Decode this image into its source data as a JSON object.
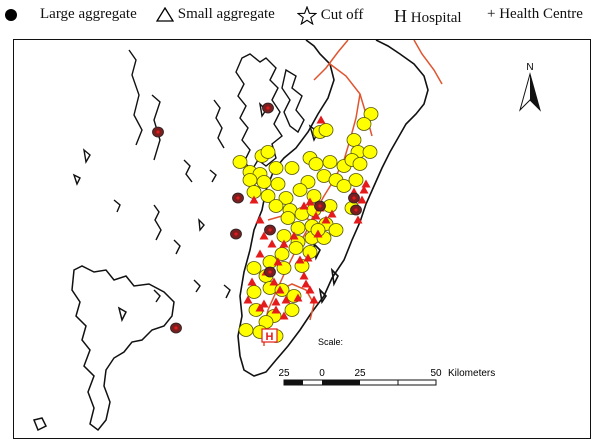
{
  "legend": {
    "large_aggregate": "Large aggregate",
    "small_aggregate": "Small aggregate",
    "cut_off": "Cut off",
    "hospital_symbol": "H",
    "hospital": "Hospital",
    "health_centre_symbol": "+",
    "health_centre": "Health Centre"
  },
  "map": {
    "north_label": "N",
    "scale_title": "Scale:",
    "scale_labels": [
      "25",
      "0",
      "25",
      "50"
    ],
    "scale_unit": "Kilometers",
    "hospital_marker": "H",
    "colors": {
      "land_outline": "#111111",
      "road": "#e0552f",
      "large_aggregate_fill": "#ffff00",
      "large_aggregate_stroke": "#555500",
      "small_aggregate": "#e51b1b",
      "cut_off_fill": "#7a1f1f",
      "hospital": "#e51b1b"
    },
    "icons": [
      "filled-circle-icon",
      "triangle-icon",
      "star-icon",
      "north-arrow-icon"
    ]
  }
}
